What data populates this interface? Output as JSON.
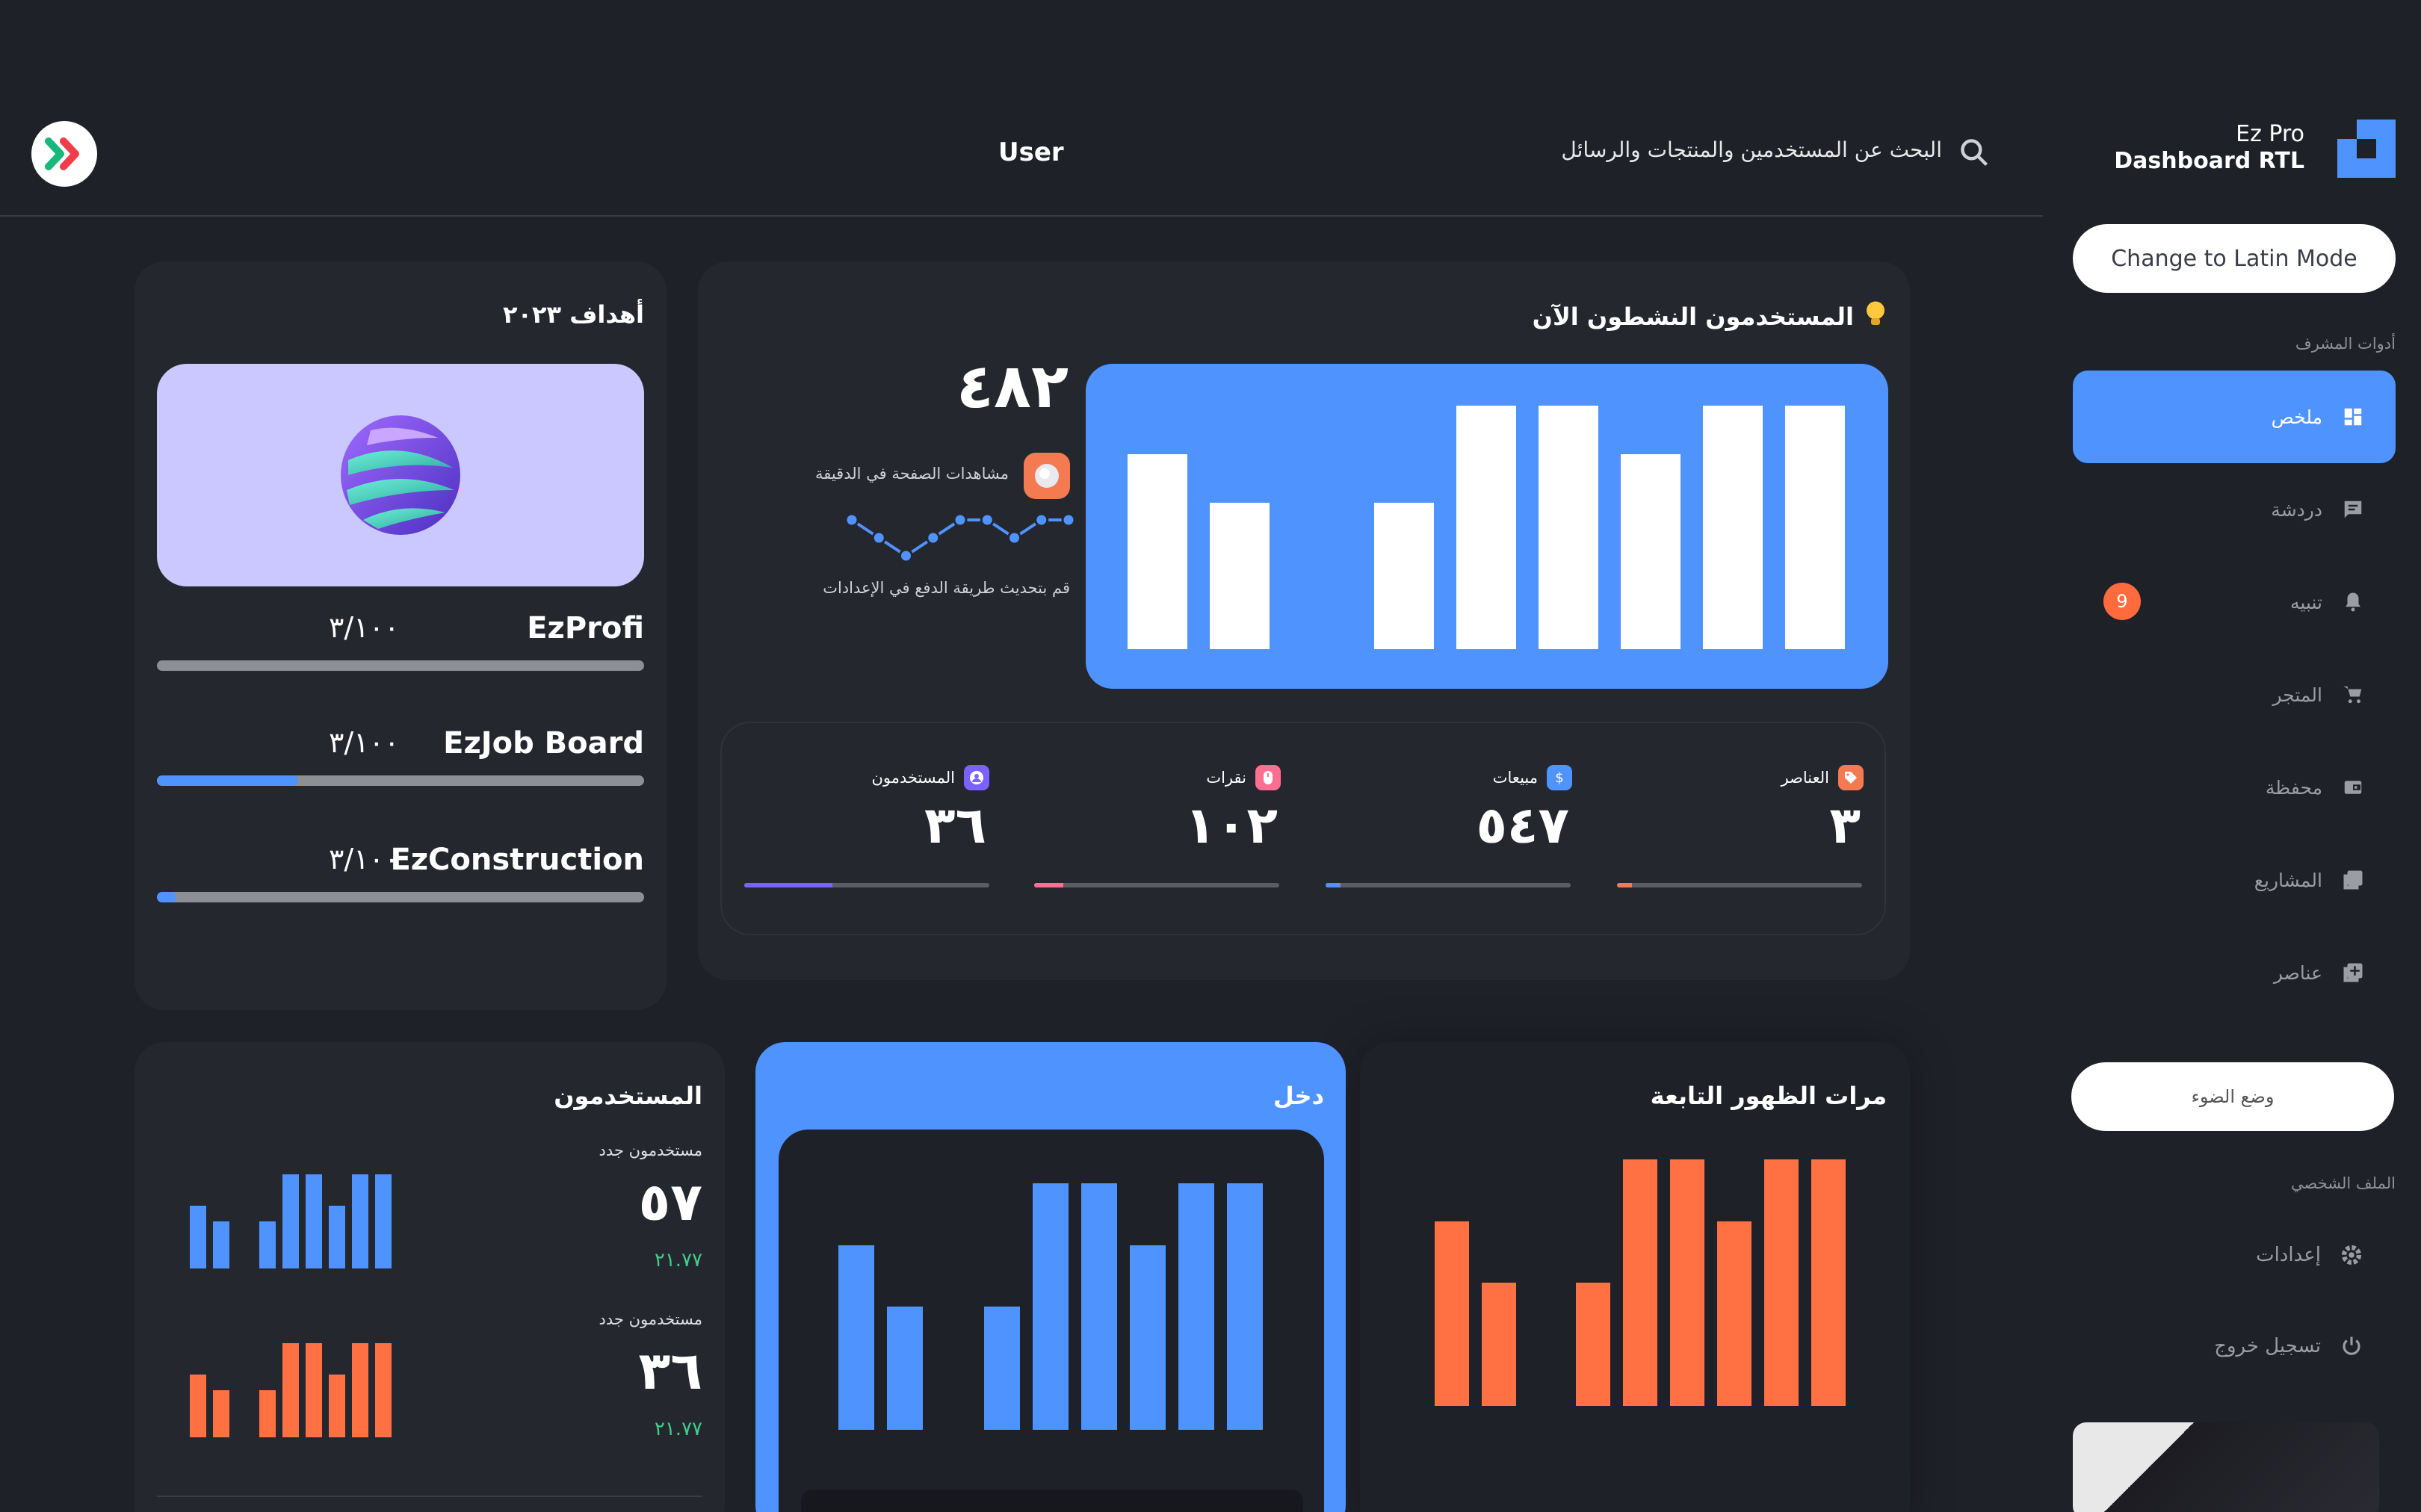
{
  "colors": {
    "accent": "#4f93ff",
    "orange": "#ff7043",
    "background": "#1f2128",
    "card": "#25272f"
  },
  "brand": {
    "line1": "Ez Pro",
    "line2": "Dashboard RTL"
  },
  "sidebar": {
    "latin_mode_button": "Change to Latin Mode",
    "admin_tools_label": "أدوات المشرف",
    "items": [
      {
        "label": "ملخص",
        "icon": "dashboard-icon",
        "active": true
      },
      {
        "label": "دردشة",
        "icon": "chat-icon"
      },
      {
        "label": "تنبيه",
        "icon": "bell-icon",
        "badge": "9"
      },
      {
        "label": "المتجر",
        "icon": "cart-icon"
      },
      {
        "label": "محفظة",
        "icon": "wallet-icon"
      },
      {
        "label": "المشاريع",
        "icon": "projects-icon"
      },
      {
        "label": "عناصر",
        "icon": "add-box-icon"
      }
    ],
    "light_mode_button": "وضع الضوء",
    "profile_label": "الملف الشخصي",
    "settings_label": "إعدادات",
    "logout_label": "تسجيل خروج"
  },
  "header": {
    "search_placeholder": "البحث عن المستخدمين والمنتجات والرسائل",
    "user_label": "User"
  },
  "goals": {
    "title": "أهداف ٢٠٢٣",
    "items": [
      {
        "name": "EzProfi",
        "value": "٣/١٠٠",
        "progress": 0.0
      },
      {
        "name": "EzJob Board",
        "value": "٣/١٠٠",
        "progress": 0.29
      },
      {
        "name": "EzConstruction",
        "value": "٣/١٠٠",
        "progress": 0.04
      }
    ]
  },
  "active_users": {
    "title": "المستخدمون النشطون الآن",
    "count": "٤٨٢",
    "pageviews_label": "مشاهدات الصفحة في الدقيقة",
    "hint": "قم بتحديث طريقة الدفع في الإعدادات",
    "bars": [
      8,
      6,
      0,
      6,
      10,
      10,
      8,
      10,
      10
    ],
    "sparkline": [
      3,
      2,
      1,
      2,
      3,
      3,
      2,
      3,
      3
    ],
    "stats": [
      {
        "label": "العناصر",
        "value": "٣",
        "color": "#f47a52",
        "progress": 0.06
      },
      {
        "label": "مبيعات",
        "value": "٥٤٧",
        "color": "#4f93ff",
        "progress": 0.06
      },
      {
        "label": "نقرات",
        "value": "١٠٢",
        "color": "#ff6f91",
        "progress": 0.12
      },
      {
        "label": "المستخدمون",
        "value": "٣٦",
        "color": "#7b61ff",
        "progress": 0.36
      }
    ]
  },
  "impressions": {
    "title": "مرات الظهور التابعة",
    "bars": [
      6,
      4,
      0,
      4,
      8,
      8,
      6,
      8,
      8
    ]
  },
  "income": {
    "title": "دخل",
    "bars": [
      6,
      4,
      0,
      4,
      8,
      8,
      6,
      8,
      8
    ]
  },
  "users_card": {
    "title": "المستخدمون",
    "rows": [
      {
        "label": "مستخدمون جدد",
        "value": "٥٧",
        "delta": "٢١.٧٧",
        "color": "#4f93ff",
        "bars": [
          4,
          3,
          0,
          3,
          6,
          6,
          4,
          6,
          6
        ]
      },
      {
        "label": "مستخدمون جدد",
        "value": "٣٦",
        "delta": "٢١.٧٧",
        "color": "#ff7043",
        "bars": [
          4,
          3,
          0,
          3,
          6,
          6,
          4,
          6,
          6
        ]
      }
    ]
  }
}
